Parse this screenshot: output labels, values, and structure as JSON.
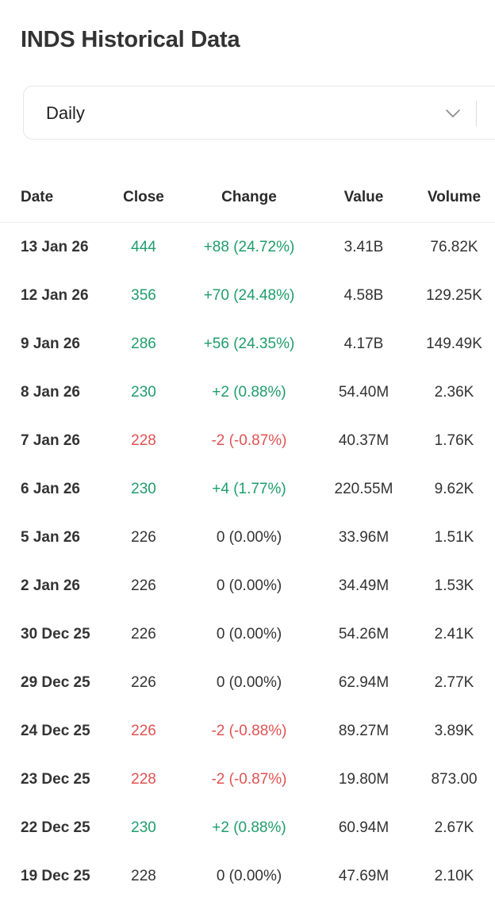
{
  "page": {
    "title": "INDS Historical Data"
  },
  "period_select": {
    "value": "Daily",
    "icon": "chevron-down-icon"
  },
  "colors": {
    "positive": "#1f9d6b",
    "negative": "#e05252",
    "neutral": "#333333"
  },
  "table": {
    "headers": {
      "date": "Date",
      "close": "Close",
      "change": "Change",
      "value": "Value",
      "volume": "Volume"
    },
    "rows": [
      {
        "date": "13 Jan 26",
        "close": "444",
        "change": "+88 (24.72%)",
        "value": "3.41B",
        "volume": "76.82K",
        "direction": "up"
      },
      {
        "date": "12 Jan 26",
        "close": "356",
        "change": "+70 (24.48%)",
        "value": "4.58B",
        "volume": "129.25K",
        "direction": "up"
      },
      {
        "date": "9 Jan 26",
        "close": "286",
        "change": "+56 (24.35%)",
        "value": "4.17B",
        "volume": "149.49K",
        "direction": "up"
      },
      {
        "date": "8 Jan 26",
        "close": "230",
        "change": "+2 (0.88%)",
        "value": "54.40M",
        "volume": "2.36K",
        "direction": "up"
      },
      {
        "date": "7 Jan 26",
        "close": "228",
        "change": "-2 (-0.87%)",
        "value": "40.37M",
        "volume": "1.76K",
        "direction": "down"
      },
      {
        "date": "6 Jan 26",
        "close": "230",
        "change": "+4 (1.77%)",
        "value": "220.55M",
        "volume": "9.62K",
        "direction": "up"
      },
      {
        "date": "5 Jan 26",
        "close": "226",
        "change": "0 (0.00%)",
        "value": "33.96M",
        "volume": "1.51K",
        "direction": "flat"
      },
      {
        "date": "2 Jan 26",
        "close": "226",
        "change": "0 (0.00%)",
        "value": "34.49M",
        "volume": "1.53K",
        "direction": "flat"
      },
      {
        "date": "30 Dec 25",
        "close": "226",
        "change": "0 (0.00%)",
        "value": "54.26M",
        "volume": "2.41K",
        "direction": "flat"
      },
      {
        "date": "29 Dec 25",
        "close": "226",
        "change": "0 (0.00%)",
        "value": "62.94M",
        "volume": "2.77K",
        "direction": "flat"
      },
      {
        "date": "24 Dec 25",
        "close": "226",
        "change": "-2 (-0.88%)",
        "value": "89.27M",
        "volume": "3.89K",
        "direction": "down"
      },
      {
        "date": "23 Dec 25",
        "close": "228",
        "change": "-2 (-0.87%)",
        "value": "19.80M",
        "volume": "873.00",
        "direction": "down"
      },
      {
        "date": "22 Dec 25",
        "close": "230",
        "change": "+2 (0.88%)",
        "value": "60.94M",
        "volume": "2.67K",
        "direction": "up"
      },
      {
        "date": "19 Dec 25",
        "close": "228",
        "change": "0 (0.00%)",
        "value": "47.69M",
        "volume": "2.10K",
        "direction": "flat"
      }
    ]
  }
}
